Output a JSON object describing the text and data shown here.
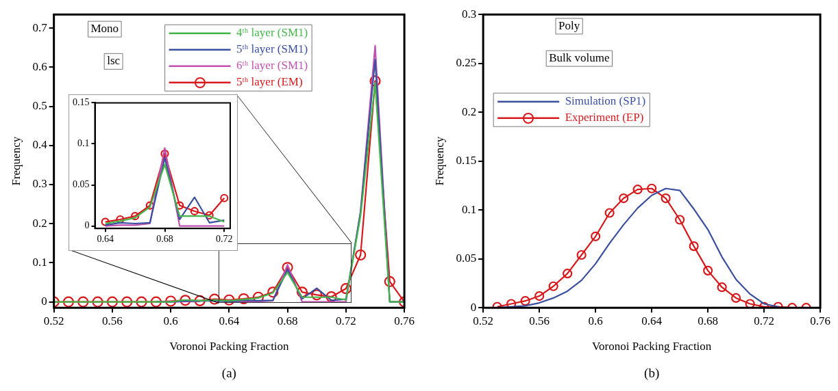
{
  "chart_data": [
    {
      "type": "line",
      "xlabel": "Voronoi Packing Fraction",
      "ylabel": "Frequency",
      "annotations": [
        "Mono",
        "lsc",
        "(a)"
      ],
      "legend": "top",
      "x": [
        0.52,
        0.53,
        0.54,
        0.55,
        0.56,
        0.57,
        0.58,
        0.59,
        0.6,
        0.61,
        0.62,
        0.63,
        0.64,
        0.65,
        0.66,
        0.67,
        0.68,
        0.69,
        0.7,
        0.71,
        0.72,
        0.73,
        0.74,
        0.75,
        0.76
      ],
      "xlim": [
        0.52,
        0.76
      ],
      "xticks": [
        0.52,
        0.56,
        0.6,
        0.64,
        0.68,
        0.72,
        0.76
      ],
      "ylim": [
        -0.015,
        0.735
      ],
      "yticks": [
        0,
        0.1,
        0.2,
        0.3,
        0.4,
        0.5,
        0.6,
        0.7
      ],
      "series": [
        {
          "name": "4ᵗʰ layer (SM1)",
          "color": "#44b649",
          "marker": "none",
          "values": [
            0,
            0,
            0,
            0,
            0,
            0,
            0,
            0,
            0,
            0.005,
            0.003,
            0.005,
            0.003,
            0.006,
            0.01,
            0.023,
            0.075,
            0.012,
            0.012,
            0.012,
            0.005,
            0.22,
            0.56,
            0,
            0
          ]
        },
        {
          "name": "5ᵗʰ layer (SM1)",
          "color": "#3a4fa0",
          "marker": "none",
          "values": [
            null,
            null,
            null,
            null,
            null,
            null,
            null,
            0,
            0,
            0.002,
            0.002,
            0.003,
            0.001,
            0.004,
            0.003,
            0.004,
            0.083,
            0.008,
            0.035,
            0.004,
            0.007,
            0.23,
            0.62,
            0,
            0
          ]
        },
        {
          "name": "6ᵗʰ layer (SM1)",
          "color": "#c050b0",
          "marker": "none",
          "values": [
            null,
            null,
            null,
            null,
            null,
            null,
            null,
            0,
            0,
            0.001,
            0.001,
            null,
            0,
            0.001,
            0.001,
            0.003,
            0.095,
            0,
            0,
            0,
            0,
            0.23,
            0.655,
            0,
            0
          ]
        },
        {
          "name": "5ᵗʰ layer (EM)",
          "color": "#d7191c",
          "marker": "circle",
          "values": [
            0,
            0,
            0,
            0,
            0,
            0,
            0,
            0,
            0.002,
            0.004,
            0.003,
            0.007,
            0.005,
            0.008,
            0.012,
            0.025,
            0.088,
            0.025,
            0.018,
            0.013,
            0.034,
            0.12,
            0.565,
            0.052,
            0
          ]
        }
      ]
    },
    {
      "type": "line",
      "x": [
        0.64,
        0.65,
        0.66,
        0.67,
        0.68,
        0.69,
        0.7,
        0.71,
        0.72
      ],
      "xlim": [
        0.633,
        0.724
      ],
      "xticks": [
        0.64,
        0.68,
        0.72
      ],
      "ylim": [
        -0.003,
        0.15
      ],
      "yticks": [
        0,
        0.05,
        0.1,
        0.15
      ],
      "series": [
        {
          "color": "#44b649",
          "marker": "none",
          "values": [
            0.003,
            0.006,
            0.01,
            0.023,
            0.075,
            0.012,
            0.012,
            0.012,
            0.005
          ]
        },
        {
          "color": "#3a4fa0",
          "marker": "none",
          "values": [
            0.001,
            0.004,
            0.003,
            0.004,
            0.083,
            0.008,
            0.035,
            0.004,
            0.007
          ]
        },
        {
          "color": "#c050b0",
          "marker": "none",
          "values": [
            0,
            0.001,
            0.001,
            0.003,
            0.095,
            0,
            0,
            0,
            0
          ]
        },
        {
          "color": "#d7191c",
          "marker": "circle",
          "values": [
            0.005,
            0.008,
            0.012,
            0.025,
            0.088,
            0.025,
            0.018,
            0.013,
            0.034
          ]
        }
      ]
    },
    {
      "type": "line",
      "xlabel": "Voronoi Packing Fraction",
      "ylabel": "Frequency",
      "annotations": [
        "Poly",
        "Bulk volume",
        "(b)"
      ],
      "legend": "top left",
      "xlim": [
        0.52,
        0.76
      ],
      "xticks": [
        0.52,
        0.56,
        0.6,
        0.64,
        0.68,
        0.72,
        0.76
      ],
      "ylim": [
        0,
        0.3
      ],
      "yticks": [
        0,
        0.05,
        0.1,
        0.15,
        0.2,
        0.25,
        0.3
      ],
      "series": [
        {
          "name": "Simulation (SP1)",
          "color": "#3a4fa0",
          "marker": "none",
          "x": [
            0.53,
            0.54,
            0.55,
            0.56,
            0.57,
            0.58,
            0.59,
            0.6,
            0.61,
            0.62,
            0.63,
            0.64,
            0.65,
            0.66,
            0.67,
            0.68,
            0.69,
            0.7,
            0.71,
            0.72,
            0.73
          ],
          "values": [
            0,
            0.001,
            0.002,
            0.005,
            0.01,
            0.017,
            0.028,
            0.045,
            0.066,
            0.085,
            0.102,
            0.115,
            0.122,
            0.12,
            0.101,
            0.08,
            0.052,
            0.029,
            0.014,
            0.004,
            0.001
          ]
        },
        {
          "name": "Experiment (EP)",
          "color": "#d7191c",
          "marker": "circle",
          "x": [
            0.53,
            0.54,
            0.55,
            0.56,
            0.57,
            0.58,
            0.59,
            0.6,
            0.61,
            0.62,
            0.63,
            0.64,
            0.65,
            0.66,
            0.67,
            0.68,
            0.69,
            0.7,
            0.71,
            0.72,
            0.73,
            0.74,
            0.75
          ],
          "values": [
            0.001,
            0.004,
            0.007,
            0.012,
            0.022,
            0.035,
            0.054,
            0.073,
            0.097,
            0.112,
            0.121,
            0.122,
            0.112,
            0.09,
            0.063,
            0.038,
            0.021,
            0.01,
            0.004,
            0.001,
            0.001,
            0,
            0
          ]
        }
      ]
    }
  ]
}
